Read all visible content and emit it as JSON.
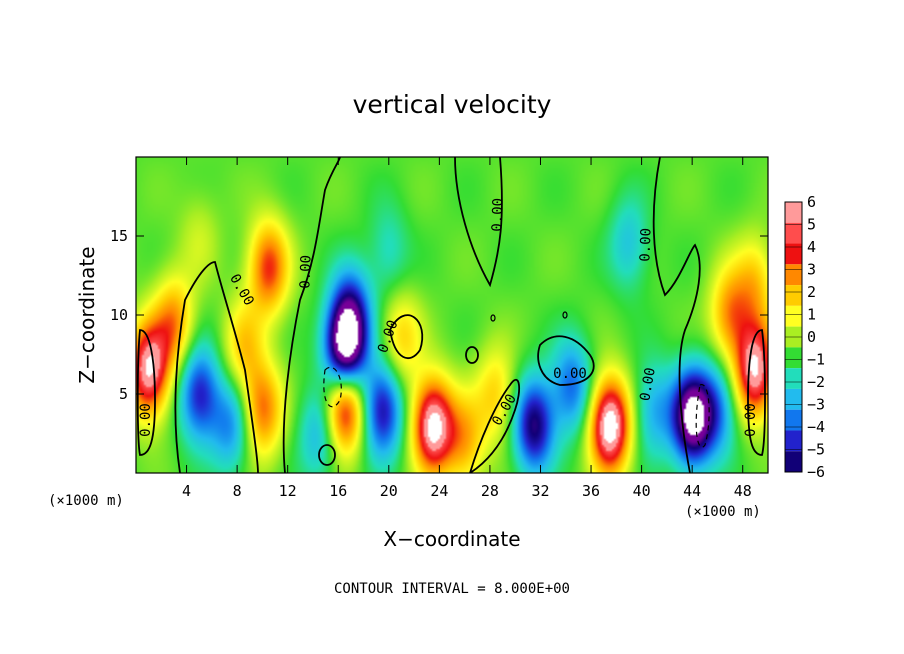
{
  "chart_data": {
    "type": "heatmap",
    "title": "vertical velocity",
    "xlabel": "X−coordinate",
    "ylabel": "Z−coordinate",
    "x_unit": "(×1000 m)",
    "x_unit_right": "(×1000 m)",
    "xlim": [
      0,
      50
    ],
    "ylim": [
      0,
      20
    ],
    "x_ticks": [
      4,
      8,
      12,
      16,
      20,
      24,
      28,
      32,
      36,
      40,
      44,
      48
    ],
    "y_ticks": [
      5,
      10,
      15
    ],
    "colorbar": {
      "levels": [
        6,
        5,
        4,
        3,
        2,
        1,
        0,
        -1,
        -2,
        -3,
        -4,
        -5,
        -6
      ],
      "labels": [
        "6",
        "5",
        "4",
        "3",
        "2",
        "1",
        "0",
        "−1",
        "−2",
        "−3",
        "−4",
        "−5",
        "−6"
      ],
      "colors": [
        "#ff9a9a",
        "#ff4d4d",
        "#ee1111",
        "#ff8800",
        "#ffcc00",
        "#ffff22",
        "#aaee22",
        "#33dd33",
        "#22ddbb",
        "#22bbee",
        "#1177ee",
        "#2222cc",
        "#110077",
        "#770099"
      ]
    },
    "contour_labels": [
      "0.00",
      "0.00",
      "0.00",
      "0.00",
      "0.00",
      "0.00",
      "0.00",
      "0.00",
      "0.00",
      "0.00"
    ],
    "features": [
      {
        "x": 1.0,
        "z": 6.5,
        "w": 6.5
      },
      {
        "x": 3.0,
        "z": 9.5,
        "w": 3.5
      },
      {
        "x": 10.5,
        "z": 13.0,
        "w": 4.5
      },
      {
        "x": 10.0,
        "z": 4.0,
        "w": 4.0
      },
      {
        "x": 8.5,
        "z": 8.0,
        "w": 2.5
      },
      {
        "x": 5.0,
        "z": 5.0,
        "w": -4.5
      },
      {
        "x": 7.5,
        "z": 3.0,
        "w": -3.0
      },
      {
        "x": 16.5,
        "z": 7.5,
        "w": -8.0
      },
      {
        "x": 17.0,
        "z": 10.0,
        "w": -4.5
      },
      {
        "x": 16.5,
        "z": 4.5,
        "w": 7.0
      },
      {
        "x": 14.5,
        "z": 2.5,
        "w": -2.5
      },
      {
        "x": 19.5,
        "z": 4.0,
        "w": -5.0
      },
      {
        "x": 23.5,
        "z": 3.0,
        "w": 7.0
      },
      {
        "x": 21.0,
        "z": 8.5,
        "w": 2.5
      },
      {
        "x": 26.0,
        "z": 2.0,
        "w": 3.0
      },
      {
        "x": 28.5,
        "z": 5.0,
        "w": 2.5
      },
      {
        "x": 31.5,
        "z": 3.0,
        "w": -5.5
      },
      {
        "x": 37.5,
        "z": 3.0,
        "w": 7.5
      },
      {
        "x": 34.5,
        "z": 5.5,
        "w": -3.5
      },
      {
        "x": 41.0,
        "z": 4.0,
        "w": -2.5
      },
      {
        "x": 44.0,
        "z": 3.5,
        "w": -7.5
      },
      {
        "x": 46.0,
        "z": 4.0,
        "w": -3.0
      },
      {
        "x": 49.0,
        "z": 6.5,
        "w": 6.5
      },
      {
        "x": 47.0,
        "z": 10.0,
        "w": 3.5
      },
      {
        "x": 49.0,
        "z": 12.0,
        "w": 2.5
      },
      {
        "x": 39.0,
        "z": 14.5,
        "w": -2.0
      },
      {
        "x": 20.0,
        "z": 14.0,
        "w": -1.5
      },
      {
        "x": 5.0,
        "z": 15.0,
        "w": 1.0
      }
    ]
  },
  "footer": {
    "contour_interval": "CONTOUR INTERVAL = 8.000E+00"
  }
}
